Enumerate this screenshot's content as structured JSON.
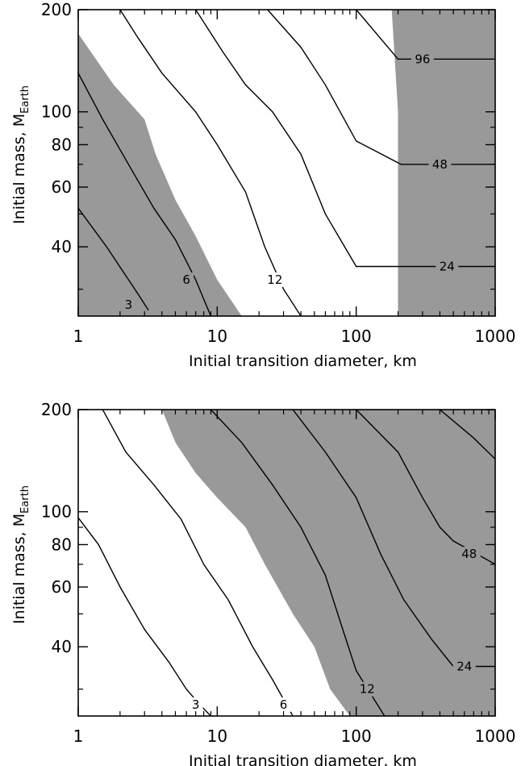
{
  "chart_data": [
    {
      "type": "contour",
      "xlabel": "Initial transition diameter, km",
      "ylabel": "Initial mass, M",
      "ylabel_sub": "Earth",
      "xscale": "log",
      "yscale": "log",
      "xlim": [
        1,
        1000
      ],
      "ylim": [
        25,
        200
      ],
      "xticks": [
        {
          "value": 1,
          "label": "1"
        },
        {
          "value": 10,
          "label": "10"
        },
        {
          "value": 100,
          "label": "100"
        },
        {
          "value": 1000,
          "label": "1000"
        }
      ],
      "yticks": [
        {
          "value": 40,
          "label": "40"
        },
        {
          "value": 60,
          "label": "60"
        },
        {
          "value": 80,
          "label": "80"
        },
        {
          "value": 100,
          "label": "100"
        },
        {
          "value": 200,
          "label": "200"
        }
      ],
      "shading_color": "#999999",
      "shaded_regions": [
        [
          [
            1,
            170
          ],
          [
            1.8,
            120
          ],
          [
            3,
            95
          ],
          [
            3.6,
            75
          ],
          [
            5,
            55
          ],
          [
            7,
            43
          ],
          [
            10,
            32
          ],
          [
            15,
            25
          ],
          [
            1,
            25
          ]
        ],
        [
          [
            180,
            200
          ],
          [
            200,
            100
          ],
          [
            200,
            25
          ],
          [
            1000,
            25
          ],
          [
            1000,
            200
          ]
        ]
      ],
      "contours": [
        {
          "label": "3",
          "label_at": [
            2.3,
            27
          ],
          "points": [
            [
              1,
              52
            ],
            [
              1.6,
              40
            ],
            [
              2.7,
              29
            ],
            [
              3.2,
              26
            ]
          ]
        },
        {
          "label": "6",
          "label_at": [
            6,
            32
          ],
          "points": [
            [
              1,
              130
            ],
            [
              1.5,
              95
            ],
            [
              2.3,
              70
            ],
            [
              3.5,
              52
            ],
            [
              5,
              42
            ],
            [
              7,
              32
            ],
            [
              9,
              25
            ]
          ]
        },
        {
          "label": "12",
          "label_at": [
            26,
            32
          ],
          "points": [
            [
              2,
              200
            ],
            [
              2.7,
              165
            ],
            [
              4,
              130
            ],
            [
              7,
              100
            ],
            [
              10,
              80
            ],
            [
              16,
              58
            ],
            [
              22,
              40
            ],
            [
              30,
              30
            ],
            [
              40,
              25
            ]
          ]
        },
        {
          "label": "24",
          "label_at": [
            450,
            35
          ],
          "points": [
            [
              7,
              200
            ],
            [
              11,
              150
            ],
            [
              16,
              120
            ],
            [
              25,
              100
            ],
            [
              40,
              75
            ],
            [
              60,
              50
            ],
            [
              100,
              35
            ],
            [
              1000,
              35
            ]
          ]
        },
        {
          "label": "48",
          "label_at": [
            400,
            70
          ],
          "points": [
            [
              23,
              200
            ],
            [
              40,
              155
            ],
            [
              60,
              120
            ],
            [
              100,
              82
            ],
            [
              210,
              70
            ],
            [
              1000,
              70
            ]
          ]
        },
        {
          "label": "96",
          "label_at": [
            300,
            143
          ],
          "points": [
            [
              100,
              200
            ],
            [
              200,
              143
            ],
            [
              1000,
              143
            ]
          ]
        }
      ]
    },
    {
      "type": "contour",
      "xlabel": "Initial transition diameter, km",
      "ylabel": "Initial mass, M",
      "ylabel_sub": "Earth",
      "xscale": "log",
      "yscale": "log",
      "xlim": [
        1,
        1000
      ],
      "ylim": [
        25,
        200
      ],
      "xticks": [
        {
          "value": 1,
          "label": "1"
        },
        {
          "value": 10,
          "label": "10"
        },
        {
          "value": 100,
          "label": "100"
        },
        {
          "value": 1000,
          "label": "1000"
        }
      ],
      "yticks": [
        {
          "value": 40,
          "label": "40"
        },
        {
          "value": 60,
          "label": "60"
        },
        {
          "value": 80,
          "label": "80"
        },
        {
          "value": 100,
          "label": "100"
        },
        {
          "value": 200,
          "label": "200"
        }
      ],
      "shading_color": "#999999",
      "shaded_regions": [
        [
          [
            4,
            200
          ],
          [
            5,
            160
          ],
          [
            7,
            130
          ],
          [
            10,
            110
          ],
          [
            16,
            90
          ],
          [
            22,
            70
          ],
          [
            35,
            50
          ],
          [
            50,
            40
          ],
          [
            65,
            30
          ],
          [
            90,
            25
          ],
          [
            1000,
            25
          ],
          [
            1000,
            200
          ]
        ]
      ],
      "contours": [
        {
          "label": "3",
          "label_at": [
            7,
            27
          ],
          "points": [
            [
              1,
              96
            ],
            [
              1.4,
              80
            ],
            [
              2,
              60
            ],
            [
              3,
              45
            ],
            [
              4.5,
              36
            ],
            [
              6,
              30
            ],
            [
              7.5,
              27
            ],
            [
              9,
              25
            ]
          ]
        },
        {
          "label": "6",
          "label_at": [
            30,
            27
          ],
          "points": [
            [
              1.5,
              200
            ],
            [
              2.2,
              150
            ],
            [
              3.5,
              120
            ],
            [
              5.5,
              95
            ],
            [
              8,
              70
            ],
            [
              12,
              55
            ],
            [
              18,
              40
            ],
            [
              25,
              32
            ],
            [
              35,
              25
            ]
          ]
        },
        {
          "label": "12",
          "label_at": [
            120,
            30
          ],
          "points": [
            [
              9,
              200
            ],
            [
              15,
              160
            ],
            [
              25,
              120
            ],
            [
              40,
              90
            ],
            [
              60,
              65
            ],
            [
              80,
              45
            ],
            [
              100,
              34
            ],
            [
              160,
              25
            ]
          ]
        },
        {
          "label": "24",
          "label_at": [
            600,
            35
          ],
          "points": [
            [
              35,
              200
            ],
            [
              60,
              150
            ],
            [
              100,
              110
            ],
            [
              150,
              75
            ],
            [
              220,
              55
            ],
            [
              350,
              42
            ],
            [
              500,
              35
            ],
            [
              1000,
              35
            ]
          ]
        },
        {
          "label": "48",
          "label_at": [
            650,
            75
          ],
          "points": [
            [
              100,
              200
            ],
            [
              200,
              150
            ],
            [
              300,
              110
            ],
            [
              400,
              90
            ],
            [
              500,
              82
            ],
            [
              1000,
              70
            ]
          ]
        },
        {
          "label": "",
          "label_at": null,
          "points": [
            [
              400,
              200
            ],
            [
              700,
              165
            ],
            [
              1000,
              143
            ]
          ]
        }
      ]
    }
  ]
}
